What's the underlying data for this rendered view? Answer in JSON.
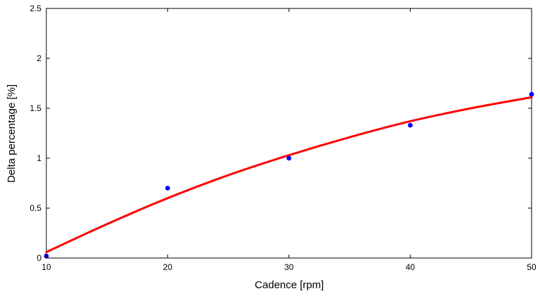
{
  "chart_data": {
    "type": "scatter",
    "title": "",
    "xlabel": "Cadence [rpm]",
    "ylabel": "Delta percentage [%]",
    "xlim": [
      10,
      50
    ],
    "ylim": [
      0,
      2.5
    ],
    "x_ticks": [
      10,
      20,
      30,
      40,
      50
    ],
    "y_ticks": [
      0,
      0.5,
      1,
      1.5,
      2,
      2.5
    ],
    "x_tick_labels": [
      "10",
      "20",
      "30",
      "40",
      "50"
    ],
    "y_tick_labels": [
      "0",
      "0.5",
      "1",
      "1.5",
      "2",
      "2.5"
    ],
    "grid": false,
    "legend": "none",
    "series": [
      {
        "kind": "points",
        "color": "#0000ff",
        "x": [
          10,
          20,
          30,
          40,
          50
        ],
        "y": [
          0.02,
          0.7,
          1.0,
          1.33,
          1.64
        ]
      },
      {
        "kind": "fit-curve",
        "color": "#ff0000",
        "x": [
          10,
          15,
          20,
          25,
          30,
          35,
          40,
          45,
          50
        ],
        "y": [
          0.06,
          0.34,
          0.6,
          0.83,
          1.03,
          1.21,
          1.37,
          1.5,
          1.61
        ]
      }
    ]
  }
}
